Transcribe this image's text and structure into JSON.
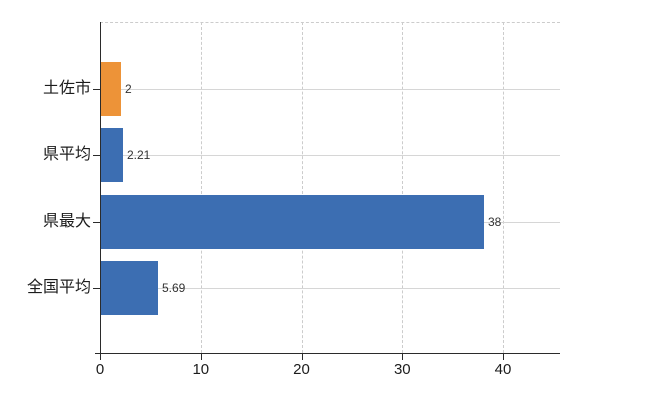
{
  "chart_data": {
    "type": "bar",
    "orientation": "horizontal",
    "title": "",
    "xlabel": "",
    "ylabel": "",
    "categories": [
      "土佐市",
      "県平均",
      "県最大",
      "全国平均"
    ],
    "values": [
      2,
      2.21,
      38,
      5.69
    ],
    "value_labels": [
      "2",
      "2.21",
      "38",
      "5.69"
    ],
    "bar_colors": [
      "#ED9338",
      "#3C6EB2",
      "#3C6EB2",
      "#3C6EB2"
    ],
    "highlight_category": "土佐市",
    "x_tick_values": [
      0,
      10,
      20,
      30,
      40
    ],
    "x_tick_labels": [
      "0",
      "10",
      "20",
      "30",
      "40"
    ],
    "xlim": [
      0,
      45.7
    ],
    "grid": {
      "vertical_style": "dashed",
      "horizontal_style": "solid",
      "top_border_style": "dashed"
    },
    "legend_position": "none"
  },
  "colors": {
    "bar_blue": "#3C6EB2",
    "bar_orange": "#ED9338",
    "axis_line": "#2b2b2b",
    "gridline_solid": "#d6d6d6",
    "gridline_dashed": "#cccccc",
    "label_text": "#1c1c1c",
    "value_text": "#333333",
    "background": "#ffffff"
  }
}
